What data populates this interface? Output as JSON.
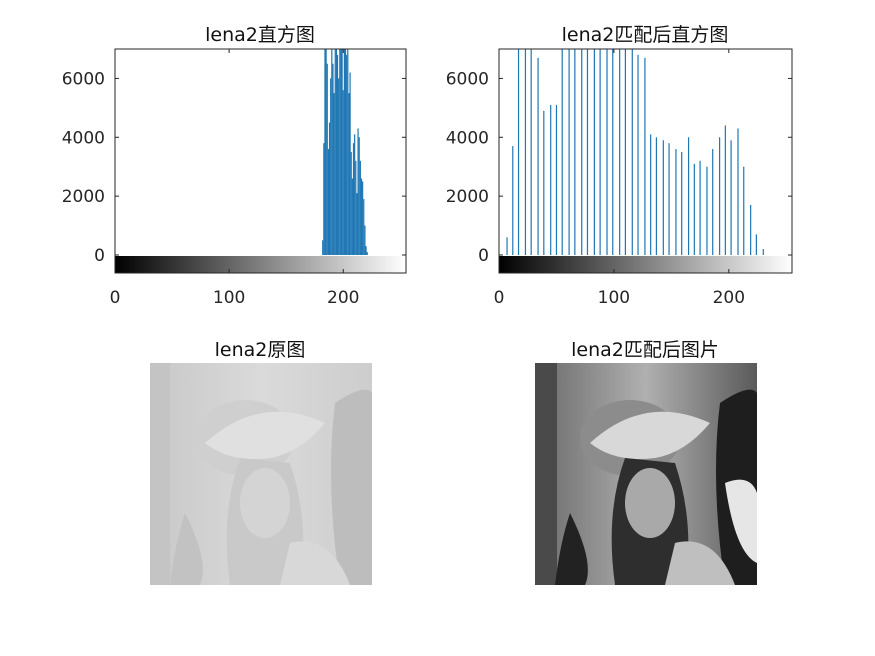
{
  "figure": {
    "titles": {
      "hist_original": "lena2直方图",
      "hist_matched": "lena2匹配后直方图",
      "img_original": "lena2原图",
      "img_matched": "lena2匹配后图片"
    }
  },
  "chart_data": [
    {
      "type": "bar",
      "title": "lena2直方图",
      "xlabel": "",
      "ylabel": "",
      "xlim": [
        0,
        255
      ],
      "ylim": [
        -600,
        7000
      ],
      "yticks": [
        0,
        2000,
        4000,
        6000
      ],
      "xticks": [
        0,
        100,
        200
      ],
      "colorbar": "grayscale",
      "color": "#1f77b4",
      "x": [
        182,
        183,
        184,
        185,
        186,
        187,
        188,
        189,
        190,
        191,
        192,
        193,
        194,
        195,
        196,
        197,
        198,
        199,
        200,
        201,
        202,
        203,
        204,
        205,
        206,
        207,
        208,
        209,
        210,
        211,
        212,
        213,
        214,
        215,
        216,
        217,
        218,
        219,
        220,
        221,
        222,
        223,
        224
      ],
      "values": [
        500,
        3800,
        7000,
        7000,
        6500,
        3600,
        4500,
        6000,
        7000,
        6500,
        5500,
        7000,
        7000,
        6800,
        6000,
        7000,
        7000,
        7000,
        5600,
        7000,
        7000,
        6800,
        7000,
        5500,
        6200,
        3500,
        2600,
        3800,
        4100,
        3200,
        2100,
        4300,
        4000,
        3200,
        2600,
        2500,
        1900,
        1000,
        300,
        100,
        0,
        0,
        0
      ]
    },
    {
      "type": "bar",
      "title": "lena2匹配后直方图",
      "xlabel": "",
      "ylabel": "",
      "xlim": [
        0,
        255
      ],
      "ylim": [
        -600,
        7000
      ],
      "yticks": [
        0,
        2000,
        4000,
        6000
      ],
      "xticks": [
        0,
        100,
        200
      ],
      "colorbar": "grayscale",
      "color": "#1f77b4",
      "x": [
        7,
        12,
        17,
        23,
        28,
        34,
        39,
        45,
        50,
        55,
        61,
        66,
        72,
        77,
        83,
        88,
        94,
        99,
        105,
        110,
        116,
        121,
        127,
        132,
        137,
        143,
        148,
        154,
        159,
        165,
        170,
        175,
        181,
        186,
        192,
        197,
        202,
        208,
        213,
        219,
        224,
        230
      ],
      "values": [
        600,
        3700,
        7000,
        7000,
        7000,
        6700,
        4900,
        5100,
        5100,
        7000,
        7000,
        7000,
        7000,
        7000,
        7000,
        7000,
        7000,
        7000,
        7000,
        7000,
        7000,
        6800,
        6700,
        4100,
        4000,
        3900,
        3800,
        3600,
        3500,
        4000,
        3100,
        3200,
        3000,
        3600,
        4000,
        4400,
        3900,
        4300,
        3000,
        1700,
        700,
        200
      ]
    }
  ]
}
